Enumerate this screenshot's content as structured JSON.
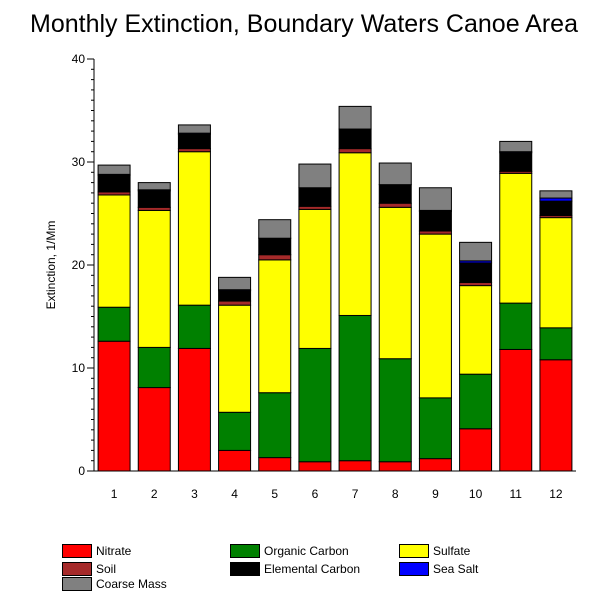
{
  "chart_data": {
    "type": "bar",
    "stacked": true,
    "title": "Monthly Extinction, Boundary Waters Canoe Area",
    "xlabel": "",
    "ylabel": "Extinction, 1/Mm",
    "ylim": [
      0,
      40
    ],
    "yticks": [
      "0",
      "10",
      "20",
      "30",
      "40"
    ],
    "categories": [
      "1",
      "2",
      "3",
      "4",
      "5",
      "6",
      "7",
      "8",
      "9",
      "10",
      "11",
      "12"
    ],
    "grid": false,
    "legend_position": "bottom",
    "series": [
      {
        "name": "Nitrate",
        "color": "#ff0000",
        "values": [
          12.6,
          8.1,
          11.9,
          2.0,
          1.3,
          0.9,
          1.0,
          0.9,
          1.2,
          4.1,
          11.8,
          10.8
        ]
      },
      {
        "name": "Organic Carbon",
        "color": "#008000",
        "values": [
          3.3,
          3.9,
          4.2,
          3.7,
          6.3,
          11.0,
          14.1,
          10.0,
          5.9,
          5.3,
          4.5,
          3.1
        ]
      },
      {
        "name": "Sulfate",
        "color": "#ffff00",
        "values": [
          10.9,
          13.3,
          14.9,
          10.4,
          12.9,
          13.5,
          15.8,
          14.7,
          15.9,
          8.6,
          12.6,
          10.7
        ]
      },
      {
        "name": "Soil",
        "color": "#a52a2a",
        "values": [
          0.3,
          0.3,
          0.3,
          0.4,
          0.5,
          0.3,
          0.4,
          0.4,
          0.3,
          0.3,
          0.2,
          0.2
        ]
      },
      {
        "name": "Elemental Carbon",
        "color": "#000000",
        "values": [
          1.6,
          1.6,
          1.4,
          1.0,
          1.6,
          1.8,
          1.9,
          1.8,
          1.9,
          1.9,
          1.8,
          1.4
        ]
      },
      {
        "name": "Sea Salt",
        "color": "#0000ff",
        "values": [
          0.1,
          0.1,
          0.1,
          0.1,
          0.0,
          0.0,
          0.0,
          0.0,
          0.1,
          0.2,
          0.1,
          0.3
        ]
      },
      {
        "name": "Coarse Mass",
        "color": "#808080",
        "values": [
          0.9,
          0.7,
          0.8,
          1.2,
          1.8,
          2.3,
          2.2,
          2.1,
          2.2,
          1.8,
          1.0,
          0.7
        ]
      }
    ]
  },
  "legend": {
    "items": [
      {
        "label": "Nitrate",
        "color": "#ff0000"
      },
      {
        "label": "Soil",
        "color": "#a52a2a"
      },
      {
        "label": "Coarse Mass",
        "color": "#808080"
      },
      {
        "label": "Organic Carbon",
        "color": "#008000"
      },
      {
        "label": "Elemental Carbon",
        "color": "#000000"
      },
      {
        "label": "Sulfate",
        "color": "#ffff00"
      },
      {
        "label": "Sea Salt",
        "color": "#0000ff"
      }
    ]
  }
}
